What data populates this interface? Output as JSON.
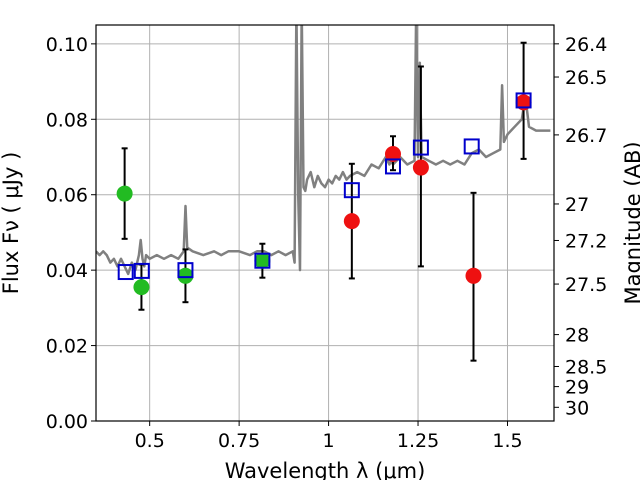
{
  "chart_data": {
    "type": "scatter",
    "xlabel": "Wavelength  λ (μm)",
    "ylabel": "Flux  Fν  ( μJy )",
    "ylabel_right": "Magnitude (AB)",
    "xlim": [
      0.35,
      1.63
    ],
    "ylim": [
      0,
      0.105
    ],
    "x_ticks": [
      0.5,
      0.75,
      1,
      1.25,
      1.5
    ],
    "x_tick_labels": [
      "0.5",
      "0.75",
      "1",
      "1.25",
      "1.5"
    ],
    "y_ticks": [
      0,
      0.02,
      0.04,
      0.06,
      0.08,
      0.1
    ],
    "y_tick_labels": [
      "0.00",
      "0.02",
      "0.04",
      "0.06",
      "0.08",
      "0.10"
    ],
    "right_ticks": [
      26.4,
      26.5,
      26.7,
      27,
      27.2,
      27.5,
      28,
      28.5,
      29,
      30
    ],
    "right_tick_labels": [
      "26.4",
      "26.5",
      "26.7",
      "27",
      "27.2",
      "27.5",
      "28",
      "28.5",
      "29",
      "30"
    ],
    "grid": true,
    "colors": {
      "model": "#808080",
      "green": "#22bb22",
      "red": "#ee1111",
      "squares": "#0000cc",
      "errorbar": "#000000",
      "grid": "#b0b0b0"
    },
    "series": [
      {
        "style": "line",
        "x": [
          0.35,
          0.36,
          0.37,
          0.38,
          0.39,
          0.4,
          0.41,
          0.42,
          0.43,
          0.44,
          0.45,
          0.46,
          0.47,
          0.475,
          0.48,
          0.485,
          0.49,
          0.5,
          0.52,
          0.54,
          0.56,
          0.58,
          0.595,
          0.6,
          0.605,
          0.62,
          0.65,
          0.68,
          0.7,
          0.72,
          0.75,
          0.78,
          0.8,
          0.82,
          0.84,
          0.86,
          0.88,
          0.9,
          0.905,
          0.91,
          0.915,
          0.92,
          0.925,
          0.93,
          0.935,
          0.94,
          0.95,
          0.96,
          0.97,
          0.98,
          0.99,
          1.0,
          1.01,
          1.02,
          1.03,
          1.04,
          1.05,
          1.06,
          1.08,
          1.1,
          1.12,
          1.14,
          1.16,
          1.17,
          1.175,
          1.18,
          1.19,
          1.2,
          1.22,
          1.24,
          1.245,
          1.25,
          1.255,
          1.26,
          1.28,
          1.3,
          1.32,
          1.34,
          1.36,
          1.38,
          1.4,
          1.42,
          1.44,
          1.46,
          1.48,
          1.485,
          1.49,
          1.5,
          1.52,
          1.54,
          1.55,
          1.56,
          1.58,
          1.6,
          1.62
        ],
        "y": [
          0.045,
          0.044,
          0.045,
          0.044,
          0.042,
          0.043,
          0.041,
          0.043,
          0.041,
          0.039,
          0.042,
          0.04,
          0.044,
          0.048,
          0.043,
          0.041,
          0.044,
          0.043,
          0.044,
          0.043,
          0.044,
          0.043,
          0.045,
          0.057,
          0.046,
          0.045,
          0.044,
          0.045,
          0.044,
          0.045,
          0.045,
          0.044,
          0.045,
          0.045,
          0.044,
          0.045,
          0.044,
          0.045,
          0.042,
          0.11,
          0.06,
          0.04,
          0.11,
          0.062,
          0.061,
          0.064,
          0.066,
          0.062,
          0.065,
          0.063,
          0.062,
          0.064,
          0.063,
          0.065,
          0.064,
          0.066,
          0.064,
          0.065,
          0.066,
          0.065,
          0.068,
          0.067,
          0.07,
          0.068,
          0.069,
          0.068,
          0.069,
          0.07,
          0.068,
          0.069,
          0.11,
          0.07,
          0.095,
          0.07,
          0.069,
          0.068,
          0.069,
          0.068,
          0.069,
          0.068,
          0.071,
          0.072,
          0.07,
          0.071,
          0.072,
          0.089,
          0.074,
          0.076,
          0.078,
          0.08,
          0.086,
          0.078,
          0.077,
          0.077,
          0.077
        ]
      },
      {
        "style": "point-green",
        "points": [
          {
            "x": 0.43,
            "y": 0.0603,
            "err": [
              0.0483,
              0.0723
            ]
          },
          {
            "x": 0.477,
            "y": 0.0355,
            "err": [
              0.0295,
              0.0415
            ]
          },
          {
            "x": 0.6,
            "y": 0.0385,
            "err": [
              0.0315,
              0.0455
            ]
          },
          {
            "x": 0.815,
            "y": 0.0425,
            "err": [
              0.038,
              0.047
            ]
          }
        ]
      },
      {
        "style": "point-red",
        "points": [
          {
            "x": 1.065,
            "y": 0.053,
            "err": [
              0.0378,
              0.0682
            ]
          },
          {
            "x": 1.18,
            "y": 0.0708,
            "err": [
              0.0665,
              0.0755
            ]
          },
          {
            "x": 1.258,
            "y": 0.0672,
            "err": [
              0.041,
              0.094
            ]
          },
          {
            "x": 1.405,
            "y": 0.0385,
            "err": [
              0.016,
              0.0605
            ]
          },
          {
            "x": 1.545,
            "y": 0.0845,
            "err": [
              0.0695,
              0.1003
            ]
          }
        ]
      },
      {
        "style": "square-blue",
        "points": [
          {
            "x": 0.433,
            "y": 0.0395
          },
          {
            "x": 0.478,
            "y": 0.0398
          },
          {
            "x": 0.6,
            "y": 0.04
          },
          {
            "x": 0.815,
            "y": 0.0425
          },
          {
            "x": 1.065,
            "y": 0.0612
          },
          {
            "x": 1.18,
            "y": 0.0675
          },
          {
            "x": 1.258,
            "y": 0.0725
          },
          {
            "x": 1.4,
            "y": 0.0728
          },
          {
            "x": 1.545,
            "y": 0.085
          }
        ]
      }
    ]
  }
}
